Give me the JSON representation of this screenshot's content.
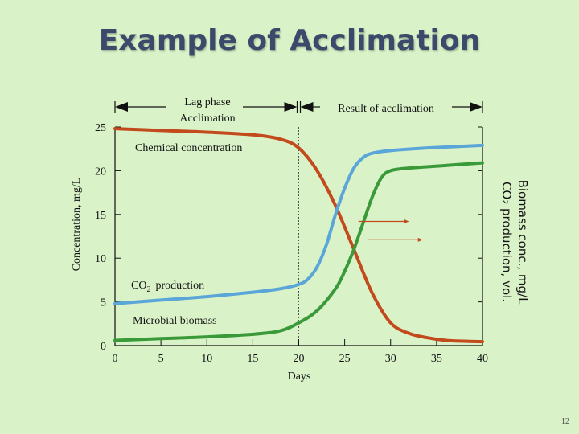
{
  "slide": {
    "title": "Example of Acclimation",
    "page_number": "12"
  },
  "colors": {
    "chemical": "#c24a1c",
    "biomass": "#3a9a3a",
    "co2": "#5aa6d8",
    "axis": "#111111",
    "arrow": "#c24a1c"
  },
  "chart_data": {
    "type": "line",
    "xlabel": "Days",
    "ylabel_left": "Concentration, mg/L",
    "ylabel_right_line1": "Biomass conc., mg/L",
    "ylabel_right_line2": "CO₂ production, vol.",
    "xlim": [
      0,
      40
    ],
    "ylim": [
      0,
      25
    ],
    "x_ticks": [
      "0",
      "5",
      "10",
      "15",
      "20",
      "25",
      "30",
      "35",
      "40"
    ],
    "y_ticks": [
      "0",
      "5",
      "10",
      "15",
      "20",
      "25"
    ],
    "divider_x": 20,
    "phases": [
      {
        "label_line1": "Lag phase",
        "label_line2": "Acclimation",
        "x_start": 0,
        "x_end": 20
      },
      {
        "label_line1": "Result of acclimation",
        "label_line2": "",
        "x_start": 20,
        "x_end": 40
      }
    ],
    "annotations": {
      "chemical": "Chemical concentration",
      "co2_main": "CO",
      "co2_sub": "2",
      "co2_rest": "production",
      "biomass": "Microbial biomass"
    },
    "series": [
      {
        "key": "chemical",
        "x": [
          0,
          5,
          10,
          15,
          18,
          20,
          22,
          24,
          26,
          28,
          30,
          32,
          34,
          36,
          38,
          40
        ],
        "y": [
          24.8,
          24.6,
          24.4,
          24.1,
          23.6,
          22.6,
          20.0,
          16.0,
          11.0,
          6.0,
          2.6,
          1.4,
          0.9,
          0.6,
          0.5,
          0.45
        ]
      },
      {
        "key": "co2",
        "x": [
          0,
          5,
          10,
          15,
          18,
          20,
          21,
          22,
          23,
          24,
          25,
          26,
          27,
          28,
          30,
          34,
          40
        ],
        "y": [
          4.8,
          5.2,
          5.6,
          6.1,
          6.5,
          7.0,
          7.6,
          9.0,
          11.5,
          15.0,
          18.0,
          20.3,
          21.5,
          22.0,
          22.3,
          22.6,
          22.9
        ]
      },
      {
        "key": "biomass",
        "x": [
          0,
          5,
          10,
          15,
          18,
          20,
          22,
          24,
          25,
          26,
          27,
          28,
          29,
          30,
          32,
          36,
          40
        ],
        "y": [
          0.6,
          0.8,
          1.0,
          1.3,
          1.7,
          2.6,
          4.0,
          6.5,
          8.5,
          11.0,
          14.0,
          17.0,
          19.2,
          20.0,
          20.3,
          20.6,
          20.9
        ]
      }
    ],
    "arrows": [
      {
        "x_start": 26.5,
        "x_end": 32.0,
        "y": 14.2
      },
      {
        "x_start": 27.5,
        "x_end": 33.5,
        "y": 12.1
      }
    ]
  }
}
